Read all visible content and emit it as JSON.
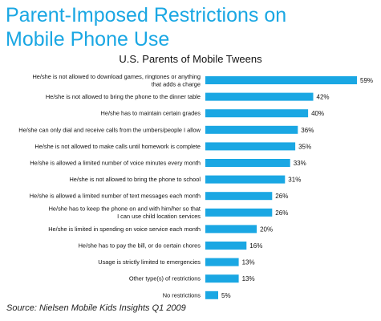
{
  "title": "Parent-Imposed Restrictions on Mobile Phone Use",
  "title_lines": [
    "Parent-Imposed Restrictions on",
    "Mobile Phone Use"
  ],
  "source": "Source: Nielsen Mobile Kids Insights Q1 2009",
  "colors": {
    "title": "#1aa7e3",
    "bar": "#1aa7e3",
    "text": "#111111"
  },
  "chart_data": {
    "type": "bar",
    "orientation": "horizontal",
    "subtitle": "U.S. Parents of Mobile Tweens",
    "value_suffix": "%",
    "xlim": [
      0,
      60
    ],
    "grid": false,
    "legend": "none",
    "categories": [
      "He/she is not allowed to download games, ringtones or anything that adds a charge",
      "He/she is not allowed to bring the phone to the dinner table",
      "He/she has to maintain certain grades",
      "He/she can only dial and receive calls from the umbers/people I allow",
      "He/she is not allowed to make calls until homework is complete",
      "He/she is allowed a limited number of voice minutes every month",
      "He/she is not allowed to bring the phone to school",
      "He/she is allowed a limited number of text messages each month",
      "He/she has to keep the phone on and with him/her so that I can use child location services",
      "He/she is limited in spending on voice service each month",
      "He/she has to pay the bill, or do certain chores",
      "Usage is strictly limited to emergencies",
      "Other type(s) of restrictions",
      "No restrictions"
    ],
    "category_lines": [
      [
        "He/she is not allowed to download games, ringtones or anything",
        "that adds a charge"
      ],
      [
        "He/she is not allowed to bring the phone to the dinner table"
      ],
      [
        "He/she has to maintain certain grades"
      ],
      [
        "He/she can only dial and receive calls from the umbers/people I allow"
      ],
      [
        "He/she is not allowed to make calls until homework is complete"
      ],
      [
        "He/she is allowed a limited number of voice minutes every month"
      ],
      [
        "He/she is not allowed to bring the phone to school"
      ],
      [
        "He/she is allowed a limited number of text messages each month"
      ],
      [
        "He/she has to keep the phone on and with him/her so that",
        "I can use child location services"
      ],
      [
        "He/she is limited in spending on voice service each month"
      ],
      [
        "He/she has to pay the bill, or do certain chores"
      ],
      [
        "Usage is strictly limited to emergencies"
      ],
      [
        "Other type(s) of restrictions"
      ],
      [
        "No restrictions"
      ]
    ],
    "values": [
      59,
      42,
      40,
      36,
      35,
      33,
      31,
      26,
      26,
      20,
      16,
      13,
      13,
      5
    ]
  }
}
